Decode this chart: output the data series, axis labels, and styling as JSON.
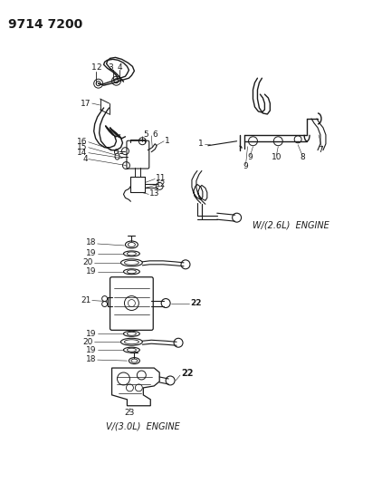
{
  "title": "9714 7200",
  "bg_color": "#ffffff",
  "line_color": "#1a1a1a",
  "text_color": "#1a1a1a",
  "title_fontsize": 10,
  "label_fontsize": 6.5,
  "annot_fontsize": 6.0,
  "figsize": [
    4.11,
    5.33
  ],
  "dpi": 100,
  "w26_label": "W/(2.6L)  ENGINE",
  "v30_label": "V/(3.0L)  ENGINE"
}
